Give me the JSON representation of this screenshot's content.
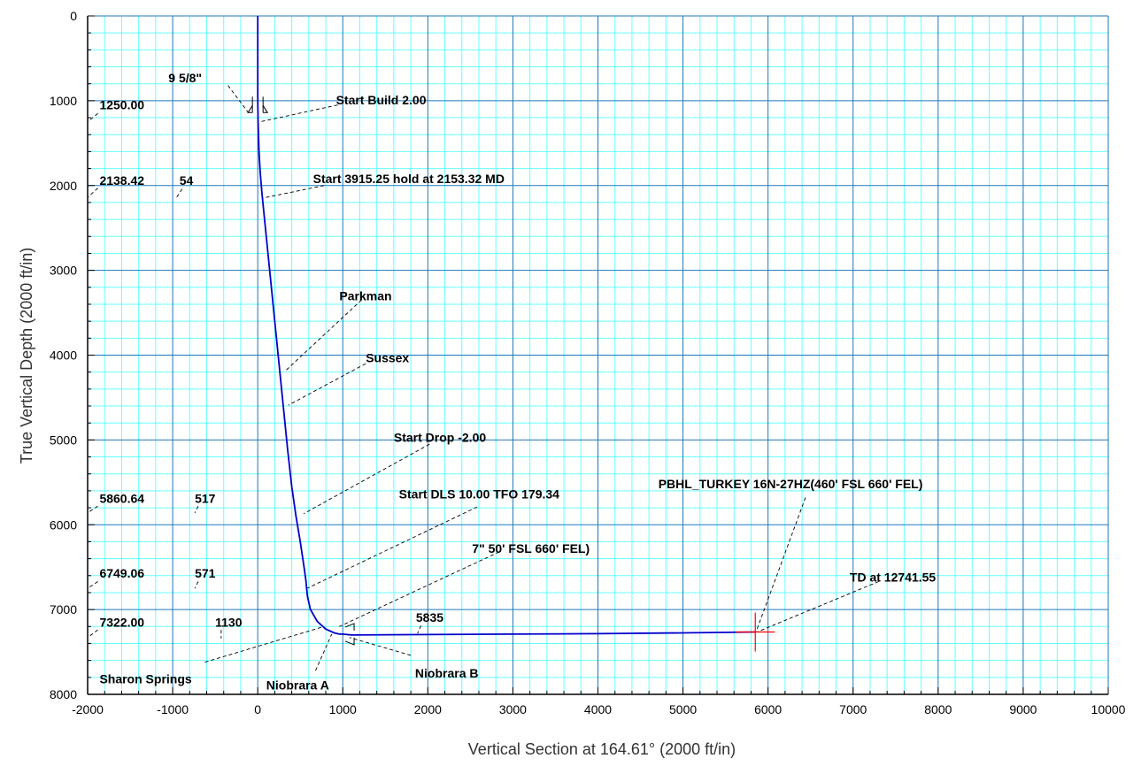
{
  "chart_data": {
    "type": "line",
    "title": "",
    "xlabel": "Vertical Section at 164.61° (2000 ft/in)",
    "ylabel": "True Vertical Depth (2000 ft/in)",
    "xlim": [
      -2000,
      10000
    ],
    "ylim": [
      8000,
      0
    ],
    "y_inverted": true,
    "grid": true,
    "x_major_ticks": [
      -2000,
      -1000,
      0,
      1000,
      2000,
      3000,
      4000,
      5000,
      6000,
      7000,
      8000,
      9000,
      10000
    ],
    "y_major_ticks": [
      0,
      1000,
      2000,
      3000,
      4000,
      5000,
      6000,
      7000,
      8000
    ],
    "colors": {
      "well_path": "#0000cc",
      "grid_major": "#1e78b8",
      "grid_minor": "#66ffff",
      "target": "#ff0000"
    },
    "series": [
      {
        "x": [
          0,
          0,
          4,
          15,
          30,
          50,
          100,
          150,
          200,
          250,
          300,
          350,
          400,
          450,
          500,
          545,
          565,
          575,
          585,
          620,
          700,
          800,
          900,
          960,
          1000,
          1100,
          2000,
          3000,
          4000,
          5000,
          5850
        ],
        "y": [
          0,
          1000,
          1260,
          1600,
          1850,
          2100,
          2600,
          3100,
          3600,
          4100,
          4600,
          5100,
          5550,
          5900,
          6200,
          6500,
          6650,
          6750,
          6850,
          7000,
          7140,
          7230,
          7275,
          7290,
          7290,
          7300,
          7295,
          7290,
          7285,
          7275,
          7265
        ]
      }
    ],
    "annotations": [
      {
        "text": "9 5/8\"",
        "x": -1050,
        "y": 730,
        "lx1": -350,
        "ly1": 820,
        "lx2": -110,
        "ly2": 1140
      },
      {
        "text": "Start Build 2.00",
        "x": 920,
        "y": 990,
        "lx1": 940,
        "ly1": 1050,
        "lx2": 20,
        "ly2": 1250
      },
      {
        "text": "1250.00",
        "x": -1860,
        "y": 1050,
        "lx1": -1880,
        "ly1": 1150,
        "lx2": -2000,
        "ly2": 1250
      },
      {
        "text": "Start 3915.25 hold at 2153.32 MD",
        "x": 650,
        "y": 1920,
        "lx1": 780,
        "ly1": 2000,
        "lx2": 50,
        "ly2": 2150
      },
      {
        "text": "2138.42",
        "x": -1860,
        "y": 1940,
        "lx1": -1880,
        "ly1": 2030,
        "lx2": -2000,
        "ly2": 2140
      },
      {
        "text": "54",
        "x": -920,
        "y": 1940,
        "lx1": -890,
        "ly1": 2040,
        "lx2": -960,
        "ly2": 2150
      },
      {
        "text": "Parkman",
        "x": 960,
        "y": 3300,
        "lx1": 1220,
        "ly1": 3350,
        "lx2": 320,
        "ly2": 4190
      },
      {
        "text": "Sussex",
        "x": 1270,
        "y": 4030,
        "lx1": 1270,
        "ly1": 4100,
        "lx2": 360,
        "ly2": 4590
      },
      {
        "text": "Start Drop -2.00",
        "x": 1600,
        "y": 4970,
        "lx1": 2020,
        "ly1": 5050,
        "lx2": 540,
        "ly2": 5870
      },
      {
        "text": "Start DLS 10.00 TFO 179.34",
        "x": 1660,
        "y": 5640,
        "lx1": 2580,
        "ly1": 5790,
        "lx2": 580,
        "ly2": 6750
      },
      {
        "text": "5860.64",
        "x": -1860,
        "y": 5690,
        "lx1": -1880,
        "ly1": 5780,
        "lx2": -2000,
        "ly2": 5860
      },
      {
        "text": "517",
        "x": -740,
        "y": 5690,
        "lx1": -700,
        "ly1": 5780,
        "lx2": -740,
        "ly2": 5860
      },
      {
        "text": "PBHL_TURKEY 16N-27HZ(460' FSL 660' FEL)",
        "x": 4710,
        "y": 5520,
        "lx1": 6440,
        "ly1": 5680,
        "lx2": 5860,
        "ly2": 7260
      },
      {
        "text": "7\" 50' FSL 660' FEL)",
        "x": 2520,
        "y": 6280,
        "lx1": 2840,
        "ly1": 6320,
        "lx2": 960,
        "ly2": 7200
      },
      {
        "text": "6749.06",
        "x": -1860,
        "y": 6570,
        "lx1": -1880,
        "ly1": 6670,
        "lx2": -2000,
        "ly2": 6750
      },
      {
        "text": "571",
        "x": -740,
        "y": 6570,
        "lx1": -700,
        "ly1": 6670,
        "lx2": -740,
        "ly2": 6750
      },
      {
        "text": "TD at 12741.55",
        "x": 6960,
        "y": 6620,
        "lx1": 7300,
        "ly1": 6670,
        "lx2": 5870,
        "ly2": 7265
      },
      {
        "text": "5835",
        "x": 1860,
        "y": 7090,
        "lx1": 1920,
        "ly1": 7190,
        "lx2": 1880,
        "ly2": 7280
      },
      {
        "text": "7322.00",
        "x": -1860,
        "y": 7150,
        "lx1": -1880,
        "ly1": 7240,
        "lx2": -2000,
        "ly2": 7330
      },
      {
        "text": "1130",
        "x": -500,
        "y": 7150,
        "lx1": -430,
        "ly1": 7240,
        "lx2": -430,
        "ly2": 7340
      },
      {
        "text": "Niobrara B",
        "x": 1850,
        "y": 7750,
        "lx1": 1800,
        "ly1": 7540,
        "lx2": 1080,
        "ly2": 7330
      },
      {
        "text": "Sharon Springs",
        "x": -1860,
        "y": 7820,
        "lx1": -620,
        "ly1": 7620,
        "lx2": 780,
        "ly2": 7200
      },
      {
        "text": "Niobrara A",
        "x": 100,
        "y": 7890,
        "lx1": 680,
        "ly1": 7720,
        "lx2": 870,
        "ly2": 7290
      }
    ]
  }
}
